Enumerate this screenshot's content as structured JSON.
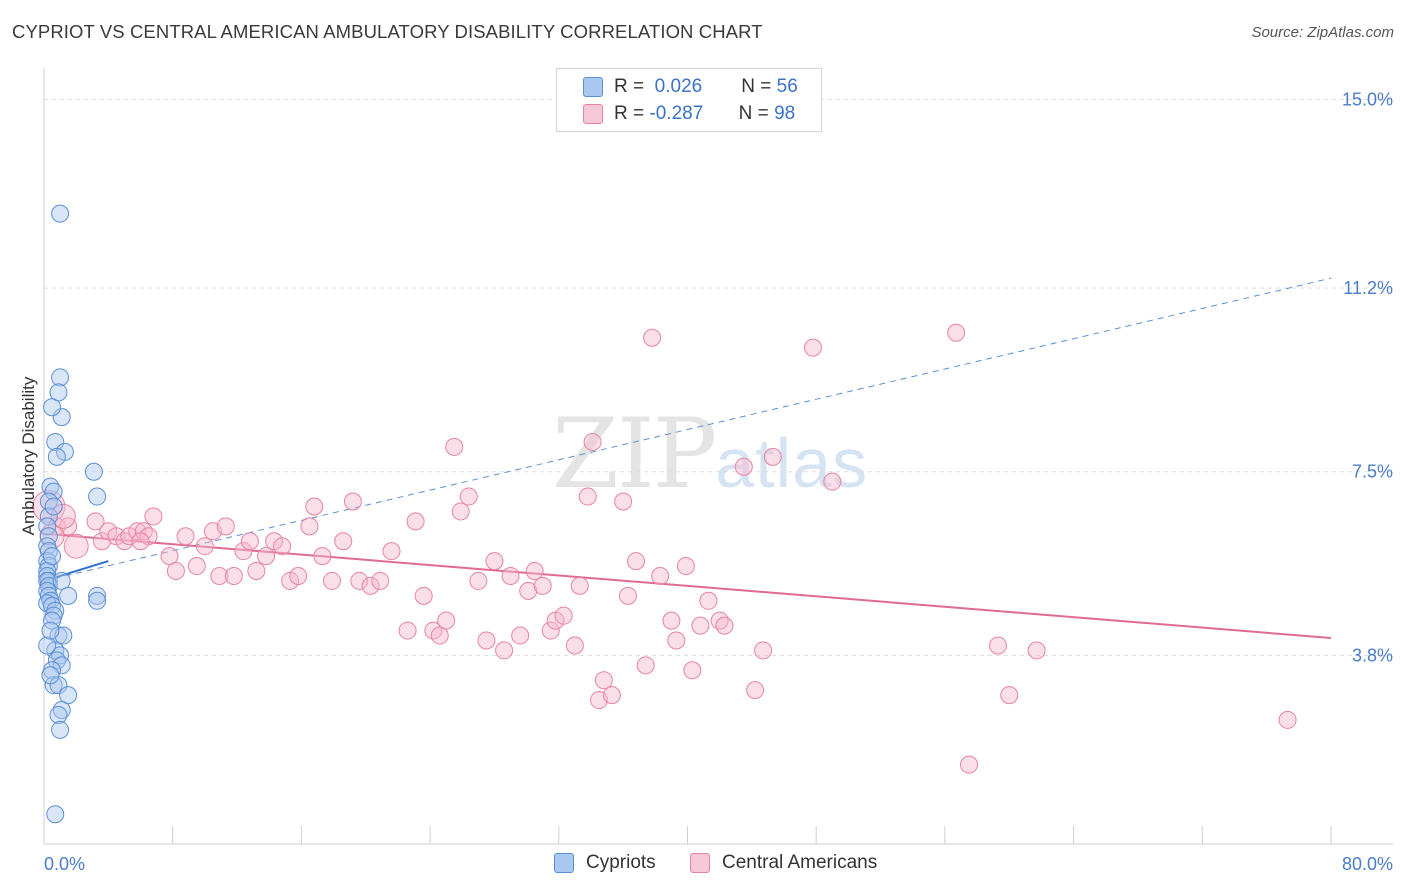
{
  "title": "CYPRIOT VS CENTRAL AMERICAN AMBULATORY DISABILITY CORRELATION CHART",
  "source": "Source: ZipAtlas.com",
  "watermark": {
    "zip": "ZIP",
    "atlas": "atlas"
  },
  "legend": {
    "rows": [
      {
        "r_label": "R =",
        "r_value": "0.026",
        "n_label": "N =",
        "n_value": "56"
      },
      {
        "r_label": "R =",
        "r_value": "-0.287",
        "n_label": "N =",
        "n_value": "98"
      }
    ]
  },
  "colors": {
    "cypriots_fill": "#aac8ef",
    "cypriots_stroke": "#5b8fd6",
    "cypriots_line": "#2f6fd0",
    "central_fill": "#f6b8cb",
    "central_stroke": "#e8849f",
    "central_line": "#e06a94",
    "grid": "#dddddd",
    "tick_text": "#4a7cc8"
  },
  "chart_data": {
    "type": "scatter",
    "title": "CYPRIOT VS CENTRAL AMERICAN AMBULATORY DISABILITY CORRELATION CHART",
    "xlabel": "",
    "ylabel": "Ambulatory Disability",
    "xlim": [
      0,
      80
    ],
    "ylim": [
      0,
      15.8
    ],
    "x_tick_labels": [
      "0.0%",
      "80.0%"
    ],
    "y_ticks": [
      3.8,
      7.5,
      11.2,
      15.0
    ],
    "y_tick_labels": [
      "3.8%",
      "7.5%",
      "11.2%",
      "15.0%"
    ],
    "grid": "horizontal dashed",
    "legend_position": "top-center and bottom",
    "series": [
      {
        "name": "Cypriots",
        "R": 0.026,
        "N": 56,
        "trend": {
          "x": [
            0,
            4
          ],
          "y": [
            5.3,
            5.7
          ],
          "extended_to": [
            80,
            11.4
          ]
        },
        "points": [
          [
            1.0,
            12.7
          ],
          [
            1.0,
            9.4
          ],
          [
            0.9,
            9.1
          ],
          [
            1.1,
            8.6
          ],
          [
            0.5,
            8.8
          ],
          [
            0.7,
            8.1
          ],
          [
            1.3,
            7.9
          ],
          [
            0.8,
            7.8
          ],
          [
            3.1,
            7.5
          ],
          [
            0.4,
            7.2
          ],
          [
            0.6,
            7.1
          ],
          [
            0.3,
            6.9
          ],
          [
            3.3,
            7.0
          ],
          [
            0.3,
            6.6
          ],
          [
            0.2,
            6.4
          ],
          [
            0.3,
            6.2
          ],
          [
            0.2,
            6.0
          ],
          [
            0.3,
            5.9
          ],
          [
            0.2,
            5.7
          ],
          [
            0.3,
            5.6
          ],
          [
            0.2,
            5.5
          ],
          [
            0.2,
            5.4
          ],
          [
            0.3,
            5.3
          ],
          [
            0.2,
            5.3
          ],
          [
            0.3,
            5.2
          ],
          [
            1.1,
            5.3
          ],
          [
            0.2,
            5.1
          ],
          [
            0.3,
            5.0
          ],
          [
            0.4,
            4.9
          ],
          [
            0.2,
            4.85
          ],
          [
            0.5,
            4.8
          ],
          [
            3.3,
            5.0
          ],
          [
            3.3,
            4.9
          ],
          [
            1.5,
            5.0
          ],
          [
            0.7,
            4.7
          ],
          [
            0.6,
            4.6
          ],
          [
            0.5,
            4.5
          ],
          [
            0.9,
            4.2
          ],
          [
            1.2,
            4.2
          ],
          [
            0.7,
            3.9
          ],
          [
            1.0,
            3.8
          ],
          [
            0.8,
            3.7
          ],
          [
            1.1,
            3.6
          ],
          [
            0.5,
            3.5
          ],
          [
            0.6,
            3.2
          ],
          [
            0.9,
            3.2
          ],
          [
            1.5,
            3.0
          ],
          [
            1.1,
            2.7
          ],
          [
            0.9,
            2.6
          ],
          [
            1.0,
            2.3
          ],
          [
            0.7,
            0.6
          ],
          [
            0.4,
            3.4
          ],
          [
            0.2,
            4.0
          ],
          [
            0.6,
            6.8
          ],
          [
            0.5,
            5.8
          ],
          [
            0.4,
            4.3
          ]
        ]
      },
      {
        "name": "Central Americans",
        "R": -0.287,
        "N": 98,
        "trend": {
          "x": [
            0,
            80
          ],
          "y": [
            6.25,
            4.15
          ]
        },
        "points": [
          [
            0.3,
            6.8
          ],
          [
            0.8,
            6.4
          ],
          [
            1.5,
            6.4
          ],
          [
            3.2,
            6.5
          ],
          [
            3.6,
            6.1
          ],
          [
            4.0,
            6.3
          ],
          [
            4.5,
            6.2
          ],
          [
            5.0,
            6.1
          ],
          [
            5.3,
            6.2
          ],
          [
            5.8,
            6.3
          ],
          [
            6.2,
            6.3
          ],
          [
            6.5,
            6.2
          ],
          [
            6.8,
            6.6
          ],
          [
            6.0,
            6.1
          ],
          [
            7.8,
            5.8
          ],
          [
            8.2,
            5.5
          ],
          [
            8.8,
            6.2
          ],
          [
            9.5,
            5.6
          ],
          [
            10.0,
            6.0
          ],
          [
            10.5,
            6.3
          ],
          [
            10.9,
            5.4
          ],
          [
            11.3,
            6.4
          ],
          [
            11.8,
            5.4
          ],
          [
            12.4,
            5.9
          ],
          [
            12.8,
            6.1
          ],
          [
            13.2,
            5.5
          ],
          [
            13.8,
            5.8
          ],
          [
            14.3,
            6.1
          ],
          [
            14.8,
            6.0
          ],
          [
            15.3,
            5.3
          ],
          [
            15.8,
            5.4
          ],
          [
            16.5,
            6.4
          ],
          [
            16.8,
            6.8
          ],
          [
            17.3,
            5.8
          ],
          [
            17.9,
            5.3
          ],
          [
            18.6,
            6.1
          ],
          [
            19.2,
            6.9
          ],
          [
            19.6,
            5.3
          ],
          [
            20.3,
            5.2
          ],
          [
            20.9,
            5.3
          ],
          [
            21.6,
            5.9
          ],
          [
            22.6,
            4.3
          ],
          [
            23.1,
            6.5
          ],
          [
            23.6,
            5.0
          ],
          [
            24.2,
            4.3
          ],
          [
            24.6,
            4.2
          ],
          [
            25.0,
            4.5
          ],
          [
            25.5,
            8.0
          ],
          [
            25.9,
            6.7
          ],
          [
            26.4,
            7.0
          ],
          [
            27.0,
            5.3
          ],
          [
            27.5,
            4.1
          ],
          [
            28.0,
            5.7
          ],
          [
            28.6,
            3.9
          ],
          [
            29.0,
            5.4
          ],
          [
            29.6,
            4.2
          ],
          [
            30.1,
            5.1
          ],
          [
            30.5,
            5.5
          ],
          [
            31.0,
            5.2
          ],
          [
            31.5,
            4.3
          ],
          [
            31.8,
            4.5
          ],
          [
            32.3,
            4.6
          ],
          [
            33.0,
            4.0
          ],
          [
            33.3,
            5.2
          ],
          [
            33.8,
            7.0
          ],
          [
            34.1,
            8.1
          ],
          [
            34.8,
            3.3
          ],
          [
            34.5,
            2.9
          ],
          [
            35.3,
            3.0
          ],
          [
            36.0,
            6.9
          ],
          [
            36.3,
            5.0
          ],
          [
            36.8,
            5.7
          ],
          [
            37.4,
            3.6
          ],
          [
            37.8,
            10.2
          ],
          [
            38.3,
            5.4
          ],
          [
            39.0,
            4.5
          ],
          [
            39.3,
            4.1
          ],
          [
            39.9,
            5.6
          ],
          [
            40.3,
            3.5
          ],
          [
            40.8,
            4.4
          ],
          [
            41.3,
            4.9
          ],
          [
            42.0,
            4.5
          ],
          [
            42.3,
            4.4
          ],
          [
            43.5,
            7.6
          ],
          [
            44.2,
            3.1
          ],
          [
            44.7,
            3.9
          ],
          [
            45.3,
            7.8
          ],
          [
            47.8,
            10.0
          ],
          [
            49.0,
            7.3
          ],
          [
            56.7,
            10.3
          ],
          [
            57.5,
            1.6
          ],
          [
            59.3,
            4.0
          ],
          [
            60.0,
            3.0
          ],
          [
            61.7,
            3.9
          ],
          [
            77.3,
            2.5
          ],
          [
            0.5,
            6.2
          ],
          [
            2.0,
            6.0
          ],
          [
            1.2,
            6.6
          ]
        ]
      }
    ]
  },
  "axis": {
    "ylabel": "Ambulatory Disability",
    "x_min_label": "0.0%",
    "x_max_label": "80.0%"
  },
  "bottom_legend": [
    {
      "label": "Cypriots"
    },
    {
      "label": "Central Americans"
    }
  ]
}
